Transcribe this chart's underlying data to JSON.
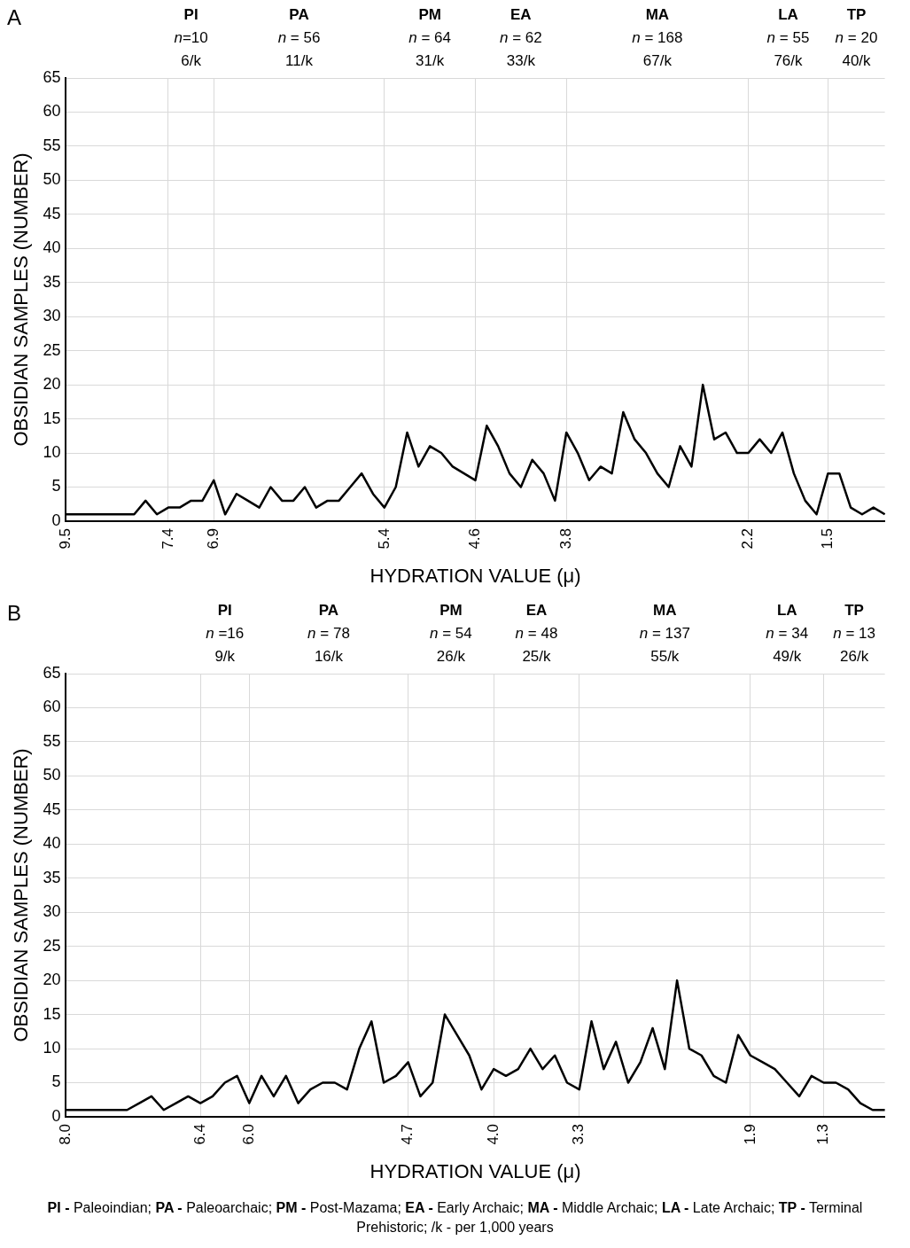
{
  "chart_data": [
    {
      "type": "line",
      "title": "A",
      "xlabel": "HYDRATION VALUE (μ)",
      "ylabel": "OBSIDIAN SAMPLES (NUMBER)",
      "categories": [
        "9.5",
        null,
        null,
        null,
        null,
        null,
        null,
        null,
        null,
        "7.4",
        null,
        null,
        null,
        "6.9",
        null,
        null,
        null,
        null,
        null,
        null,
        null,
        null,
        null,
        null,
        null,
        null,
        null,
        null,
        "5.4",
        null,
        null,
        null,
        null,
        null,
        null,
        null,
        "4.6",
        null,
        null,
        null,
        null,
        null,
        null,
        null,
        "3.8",
        null,
        null,
        null,
        null,
        null,
        null,
        null,
        null,
        null,
        null,
        null,
        null,
        null,
        null,
        null,
        "2.2",
        null,
        null,
        null,
        null,
        null,
        null,
        "1.5",
        null,
        null,
        null,
        null,
        null
      ],
      "values": [
        1,
        1,
        1,
        1,
        1,
        1,
        1,
        3,
        1,
        2,
        2,
        3,
        3,
        6,
        1,
        4,
        3,
        2,
        5,
        3,
        3,
        5,
        2,
        3,
        3,
        5,
        7,
        4,
        2,
        5,
        13,
        8,
        11,
        10,
        8,
        7,
        6,
        14,
        11,
        7,
        5,
        9,
        7,
        3,
        13,
        10,
        6,
        8,
        7,
        16,
        12,
        10,
        7,
        5,
        11,
        8,
        20,
        12,
        13,
        10,
        10,
        12,
        10,
        13,
        7,
        3,
        1,
        7,
        7,
        2,
        1,
        2,
        1
      ],
      "color": "#000000",
      "ylim": [
        0,
        65
      ],
      "yticks": [
        0,
        5,
        10,
        15,
        20,
        25,
        30,
        35,
        40,
        45,
        50,
        55,
        60,
        65
      ],
      "grid": true,
      "marker": "none",
      "line_style": "solid",
      "annotations": [
        "PI\nn=10\n6/k",
        "PA\nn = 56\n11/k",
        "PM\nn = 64\n31/k",
        "EA\nn = 62\n33/k",
        "MA\nn = 168\n67/k",
        "LA\nn = 55\n76/k",
        "TP\nn = 20\n40/k"
      ]
    },
    {
      "type": "line",
      "title": "B",
      "xlabel": "HYDRATION VALUE (μ)",
      "ylabel": "OBSIDIAN SAMPLES (NUMBER)",
      "categories": [
        "8.0",
        null,
        null,
        null,
        null,
        null,
        null,
        null,
        null,
        null,
        null,
        "6.4",
        null,
        null,
        null,
        "6.0",
        null,
        null,
        null,
        null,
        null,
        null,
        null,
        null,
        null,
        null,
        null,
        null,
        "4.7",
        null,
        null,
        null,
        null,
        null,
        null,
        "4.0",
        null,
        null,
        null,
        null,
        null,
        null,
        "3.3",
        null,
        null,
        null,
        null,
        null,
        null,
        null,
        null,
        null,
        null,
        null,
        null,
        null,
        "1.9",
        null,
        null,
        null,
        null,
        null,
        "1.3",
        null,
        null,
        null,
        null,
        null
      ],
      "values": [
        1,
        1,
        1,
        1,
        1,
        1,
        2,
        3,
        1,
        2,
        3,
        2,
        3,
        5,
        6,
        2,
        6,
        3,
        6,
        2,
        4,
        5,
        5,
        4,
        10,
        14,
        5,
        6,
        8,
        3,
        5,
        15,
        12,
        9,
        4,
        7,
        6,
        7,
        10,
        7,
        9,
        5,
        4,
        14,
        7,
        11,
        5,
        8,
        13,
        7,
        20,
        10,
        9,
        6,
        5,
        12,
        9,
        8,
        7,
        5,
        3,
        6,
        5,
        5,
        4,
        2,
        1,
        1
      ],
      "color": "#000000",
      "ylim": [
        0,
        65
      ],
      "yticks": [
        0,
        5,
        10,
        15,
        20,
        25,
        30,
        35,
        40,
        45,
        50,
        55,
        60,
        65
      ],
      "grid": true,
      "marker": "none",
      "line_style": "solid",
      "annotations": [
        "PI\nn =16\n9/k",
        "PA\nn = 78\n16/k",
        "PM\nn = 54\n26/k",
        "EA\nn = 48\n25/k",
        "MA\nn = 137\n55/k",
        "LA\nn = 34\n49/k",
        "TP\nn = 13\n26/k",
        "PI - Paleoindian;  PA - Paleoarchaic; PM - Post-Mazama;  EA - Early Archaic;  MA - Middle Archaic; LA - Late Archaic;  TP - Terminal Prehistoric; /k - per 1,000 years"
      ]
    }
  ]
}
